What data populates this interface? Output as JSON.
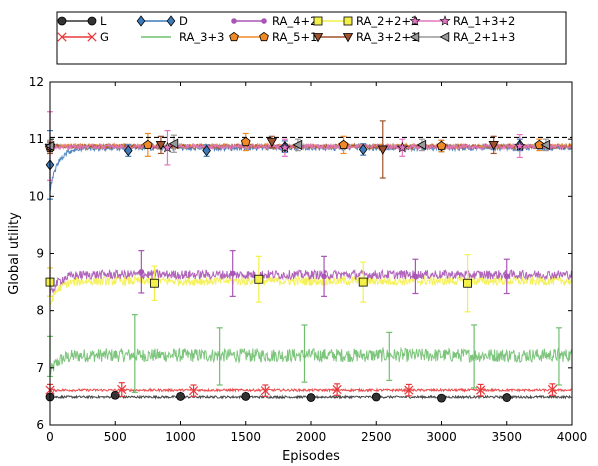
{
  "chart_data": {
    "type": "line",
    "title": "",
    "xlabel": "Episodes",
    "ylabel": "Global utility",
    "xlim": [
      0,
      4000
    ],
    "ylim": [
      6,
      12
    ],
    "xticks": [
      0,
      500,
      1000,
      1500,
      2000,
      2500,
      3000,
      3500,
      4000
    ],
    "yticks": [
      6,
      7,
      8,
      9,
      10,
      11,
      12
    ],
    "grid": false,
    "legend_position": "top, outside plot, 5 columns",
    "reference_line": {
      "y": 11.03,
      "style": "dashed",
      "color": "#000000"
    },
    "series": [
      {
        "name": "L",
        "color": "#333333",
        "marker": "circle",
        "level": 6.49,
        "noise": 0.02,
        "marker_x": [
          0,
          500,
          1000,
          1500,
          2000,
          2500,
          3000,
          3500
        ],
        "marker_y": [
          6.49,
          6.52,
          6.5,
          6.5,
          6.48,
          6.49,
          6.47,
          6.48
        ],
        "err": [
          0.05,
          0.05,
          0.05,
          0.05,
          0.05,
          0.05,
          0.05,
          0.05
        ]
      },
      {
        "name": "G",
        "color": "#e8383b",
        "marker": "x",
        "level": 6.61,
        "noise": 0.02,
        "marker_x": [
          0,
          550,
          1100,
          1650,
          2200,
          2750,
          3300,
          3850
        ],
        "marker_y": [
          6.61,
          6.62,
          6.6,
          6.6,
          6.62,
          6.61,
          6.61,
          6.62
        ],
        "err": [
          0.1,
          0.12,
          0.1,
          0.1,
          0.1,
          0.1,
          0.1,
          0.1
        ]
      },
      {
        "name": "D",
        "color": "#3d7ab8",
        "marker": "diamond",
        "level": 10.85,
        "start": 10.1,
        "noise": 0.05,
        "marker_x": [
          0,
          600,
          1200,
          1800,
          2400,
          3000,
          3600
        ],
        "marker_y": [
          10.55,
          10.8,
          10.8,
          10.87,
          10.82,
          10.88,
          10.9
        ],
        "err": [
          0.6,
          0.1,
          0.1,
          0.1,
          0.1,
          0.1,
          0.1
        ]
      },
      {
        "name": "RA_3+3",
        "color": "#6fbf6f",
        "marker": "none",
        "level": 7.22,
        "start": 6.9,
        "noise": 0.12,
        "marker_x": [
          0,
          650,
          1300,
          1950,
          2600,
          3250,
          3900
        ],
        "marker_y": [
          7.2,
          7.25,
          7.2,
          7.25,
          7.2,
          7.2,
          7.2
        ],
        "err": [
          0.35,
          0.68,
          0.5,
          0.5,
          0.42,
          0.55,
          0.5
        ]
      },
      {
        "name": "RA_4+2",
        "color": "#a855b5",
        "marker": "dot",
        "level": 8.63,
        "start": 8.25,
        "noise": 0.08,
        "marker_x": [
          0,
          700,
          1400,
          2100,
          2800,
          3500
        ],
        "marker_y": [
          8.5,
          8.68,
          8.65,
          8.6,
          8.6,
          8.6
        ],
        "err": [
          0.25,
          0.37,
          0.4,
          0.35,
          0.3,
          0.3
        ]
      },
      {
        "name": "RA_5+1",
        "color": "#f08a24",
        "marker": "pentagon",
        "level": 10.88,
        "noise": 0.04,
        "marker_x": [
          0,
          750,
          1500,
          2250,
          3000,
          3750
        ],
        "marker_y": [
          10.85,
          10.9,
          10.95,
          10.9,
          10.88,
          10.9
        ],
        "err": [
          0.1,
          0.2,
          0.15,
          0.15,
          0.1,
          0.1
        ]
      },
      {
        "name": "RA_2+2+2",
        "color": "#f4f04a",
        "marker": "square",
        "level": 8.52,
        "start": 8.1,
        "noise": 0.08,
        "marker_x": [
          0,
          800,
          1600,
          2400,
          3200
        ],
        "marker_y": [
          8.5,
          8.48,
          8.55,
          8.5,
          8.48
        ],
        "err": [
          0.25,
          0.3,
          0.4,
          0.35,
          0.5
        ]
      },
      {
        "name": "RA_3+2+1",
        "color": "#a0522d",
        "marker": "triangle-down",
        "level": 10.87,
        "noise": 0.04,
        "marker_x": [
          0,
          850,
          1700,
          2550,
          3400
        ],
        "marker_y": [
          10.85,
          10.9,
          10.95,
          10.82,
          10.9
        ],
        "err": [
          0.1,
          0.15,
          0.1,
          0.5,
          0.15
        ]
      },
      {
        "name": "RA_1+3+2",
        "color": "#e377c2",
        "marker": "star",
        "level": 10.87,
        "noise": 0.04,
        "marker_x": [
          0,
          900,
          1800,
          2700,
          3600
        ],
        "marker_y": [
          10.88,
          10.85,
          10.85,
          10.85,
          10.88
        ],
        "err": [
          0.6,
          0.3,
          0.15,
          0.15,
          0.2
        ]
      },
      {
        "name": "RA_2+1+3",
        "color": "#999999",
        "marker": "triangle-left",
        "level": 10.88,
        "noise": 0.03,
        "marker_x": [
          0,
          950,
          1900,
          2850,
          3800
        ],
        "marker_y": [
          10.88,
          10.92,
          10.9,
          10.9,
          10.9
        ],
        "err": [
          0.1,
          0.15,
          0.1,
          0.1,
          0.1
        ]
      }
    ]
  }
}
